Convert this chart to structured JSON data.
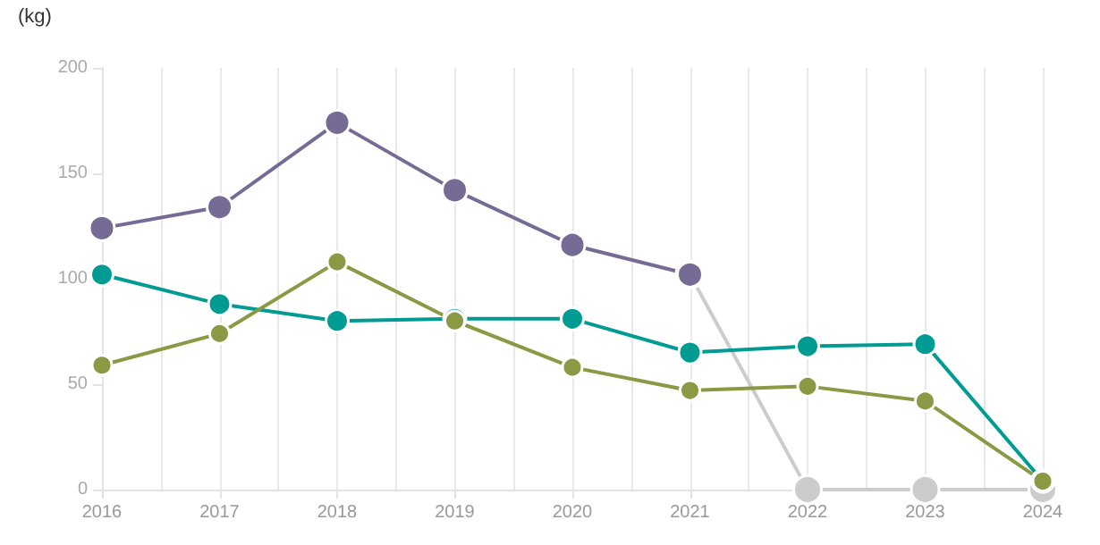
{
  "chart_data": {
    "type": "line",
    "ylabel": "(kg)",
    "x": [
      2016,
      2017,
      2018,
      2019,
      2020,
      2021,
      2022,
      2023,
      2024
    ],
    "xlim": [
      2016,
      2024
    ],
    "xticks": [
      2016,
      2017,
      2018,
      2019,
      2020,
      2021,
      2022,
      2023,
      2024
    ],
    "ylim": [
      0,
      200
    ],
    "yticks": [
      0,
      50,
      100,
      150,
      200
    ],
    "grid": "x",
    "marker": "circle",
    "line_style": "solid",
    "series": [
      {
        "color": "#cccccc",
        "values": [
          null,
          null,
          null,
          null,
          null,
          102,
          0,
          0,
          0
        ]
      },
      {
        "color": "#756b94",
        "values": [
          124,
          134,
          174,
          142,
          116,
          102,
          null,
          null,
          null
        ]
      },
      {
        "color": "#009b92",
        "values": [
          102,
          88,
          80,
          81,
          81,
          65,
          68,
          69,
          4
        ]
      },
      {
        "color": "#8b9844",
        "values": [
          59,
          74,
          108,
          80,
          58,
          47,
          49,
          42,
          4
        ]
      }
    ]
  }
}
